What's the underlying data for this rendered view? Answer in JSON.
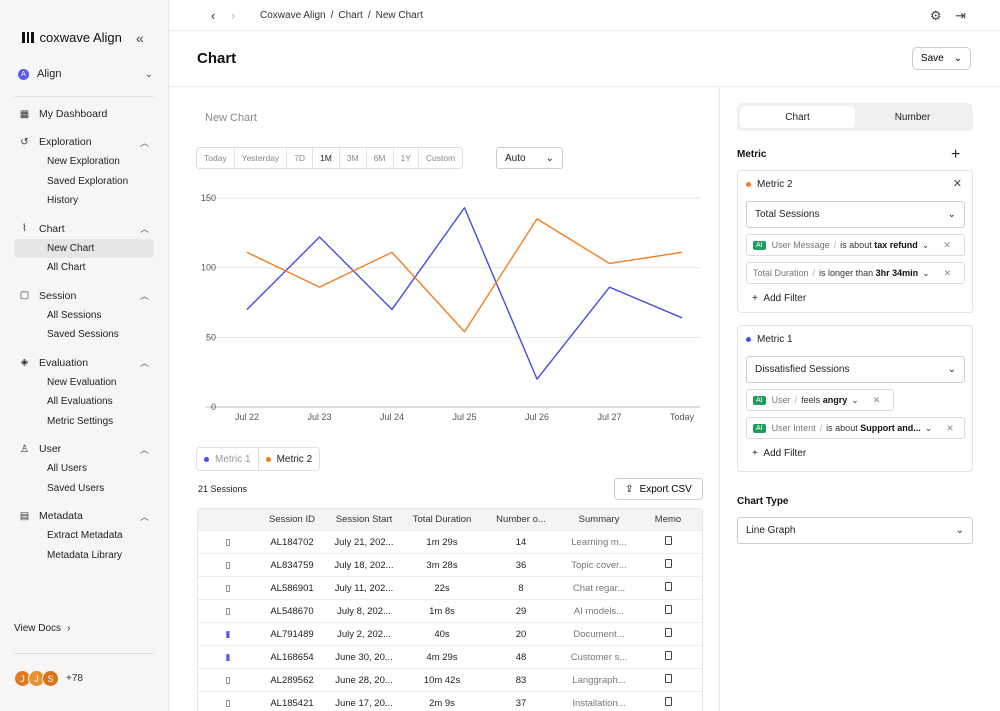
{
  "app": {
    "brand": "coxwave Align",
    "workspace": "Align",
    "workspace_initial": "A"
  },
  "sidebar": {
    "dashboard": "My Dashboard",
    "groups": [
      {
        "label": "Exploration",
        "items": [
          "New Exploration",
          "Saved Exploration",
          "History"
        ]
      },
      {
        "label": "Chart",
        "items": [
          "New Chart",
          "All Chart"
        ]
      },
      {
        "label": "Session",
        "items": [
          "All Sessions",
          "Saved Sessions"
        ]
      },
      {
        "label": "Evaluation",
        "items": [
          "New Evaluation",
          "All Evaluations",
          "Metric Settings"
        ]
      },
      {
        "label": "User",
        "items": [
          "All Users",
          "Saved Users"
        ]
      },
      {
        "label": "Metadata",
        "items": [
          "Extract Metadata",
          "Metadata Library"
        ]
      }
    ],
    "view_docs": "View Docs",
    "avatars": [
      {
        "initial": "J",
        "color": "#e07b1f"
      },
      {
        "initial": "J",
        "color": "#e9912c"
      },
      {
        "initial": "S",
        "color": "#d9731a"
      }
    ],
    "more_users": "+78"
  },
  "breadcrumb": [
    "Coxwave Align",
    "Chart",
    "New Chart"
  ],
  "header": {
    "title": "Chart",
    "save_label": "Save"
  },
  "chart_controls": {
    "chart_name_placeholder": "New Chart",
    "ranges": [
      "Today",
      "Yesterday",
      "7D",
      "1M",
      "3M",
      "6M",
      "1Y",
      "Custom"
    ],
    "selected_range": "1M",
    "granularity": "Auto"
  },
  "chart_data": {
    "type": "line",
    "categories": [
      "Jul 22",
      "Jul 23",
      "Jul 24",
      "Jul 25",
      "Jul 26",
      "Jul 27",
      "Today"
    ],
    "ylim": [
      0,
      150
    ],
    "yticks": [
      0,
      50,
      100,
      150
    ],
    "series": [
      {
        "name": "Metric 1",
        "color": "#4a4ae8",
        "values": [
          70,
          122,
          70,
          143,
          20,
          86,
          64
        ]
      },
      {
        "name": "Metric 2",
        "color": "#f07f1f",
        "values": [
          111,
          86,
          111,
          54,
          135,
          103,
          111
        ]
      }
    ]
  },
  "legend": [
    "Metric 1",
    "Metric 2"
  ],
  "sessions": {
    "count_label": "21 Sessions",
    "export_label": "Export CSV",
    "columns": [
      "Session ID",
      "Session Start",
      "Total Duration",
      "Number o...",
      "Summary",
      "Memo"
    ],
    "rows": [
      {
        "saved": false,
        "id": "AL184702",
        "start": "July 21, 202...",
        "duration": "1m 29s",
        "number": "14",
        "summary": "Learning m...",
        "memo": false
      },
      {
        "saved": false,
        "id": "AL834759",
        "start": "July 18, 202...",
        "duration": "3m 28s",
        "number": "36",
        "summary": "Topic cover...",
        "memo": true
      },
      {
        "saved": false,
        "id": "AL586901",
        "start": "July 11, 202...",
        "duration": "22s",
        "number": "8",
        "summary": "Chat regar...",
        "memo": true
      },
      {
        "saved": false,
        "id": "AL548670",
        "start": "July 8, 202...",
        "duration": "1m 8s",
        "number": "29",
        "summary": "AI models...",
        "memo": false
      },
      {
        "saved": true,
        "id": "AL791489",
        "start": "July 2, 202...",
        "duration": "40s",
        "number": "20",
        "summary": "Document...",
        "memo": false
      },
      {
        "saved": true,
        "id": "AL168654",
        "start": "June 30, 20...",
        "duration": "4m 29s",
        "number": "48",
        "summary": "Customer s...",
        "memo": false
      },
      {
        "saved": false,
        "id": "AL289562",
        "start": "June 28, 20...",
        "duration": "10m 42s",
        "number": "83",
        "summary": "Langgraph...",
        "memo": true
      },
      {
        "saved": false,
        "id": "AL185421",
        "start": "June 17, 20...",
        "duration": "2m 9s",
        "number": "37",
        "summary": "Installation...",
        "memo": true
      }
    ]
  },
  "panel": {
    "tabs": [
      "Chart",
      "Number"
    ],
    "active_tab": "Chart",
    "metric_label": "Metric",
    "metric2": {
      "name": "Metric 2",
      "dot_color": "#f07f1f",
      "select": "Total Sessions",
      "filters": [
        {
          "ai": true,
          "field": "User Message",
          "op": "is about",
          "value": "tax refund"
        },
        {
          "ai": false,
          "field": "Total Duration",
          "op": "is longer than",
          "value": "3hr 34min"
        }
      ],
      "add_filter": "Add Filter"
    },
    "metric1": {
      "name": "Metric 1",
      "dot_color": "#4a4ae8",
      "select": "Dissatisfied Sessions",
      "filters": [
        {
          "ai": true,
          "field": "User",
          "op": "feels",
          "value": "angry"
        },
        {
          "ai": true,
          "field": "User Intent",
          "op": "is about",
          "value": "Support and..."
        }
      ],
      "add_filter": "Add Filter"
    },
    "ai_badge": "AI",
    "chart_type_label": "Chart Type",
    "chart_type": "Line Graph"
  }
}
